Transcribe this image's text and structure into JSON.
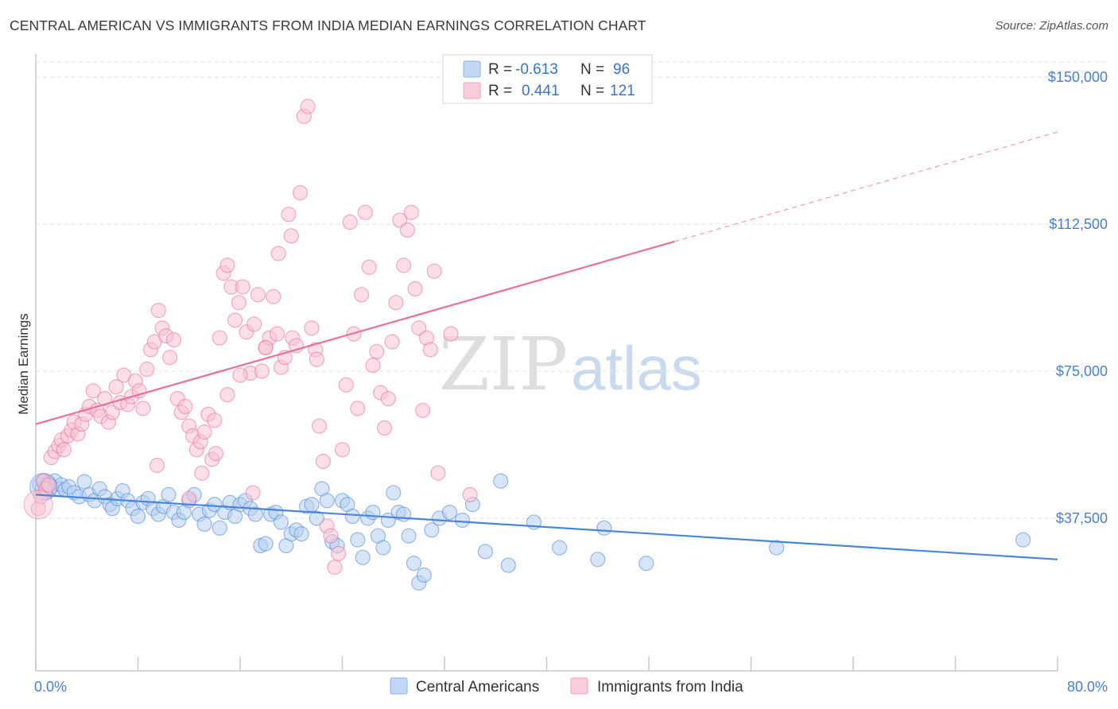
{
  "title": "CENTRAL AMERICAN VS IMMIGRANTS FROM INDIA MEDIAN EARNINGS CORRELATION CHART",
  "source": "Source: ZipAtlas.com",
  "watermark": {
    "zip": "ZIP",
    "atlas": "atlas"
  },
  "legend": {
    "r_label": "R =",
    "n_label": "N =",
    "entries": [
      {
        "r": "-0.613",
        "n": "96",
        "color": "#8db3e8",
        "fill": "#c2d7f3"
      },
      {
        "r": "0.441",
        "n": "121",
        "color": "#f0a4be",
        "fill": "#f9ccda"
      }
    ]
  },
  "chart_data": {
    "type": "scatter",
    "ylabel": "Median Earnings",
    "xlim": [
      0,
      80
    ],
    "ylim": [
      0,
      150000
    ],
    "x_tick_labels": [
      "0.0%",
      "80.0%"
    ],
    "y_ticks": [
      {
        "value": 37500,
        "label": "$37,500"
      },
      {
        "value": 75000,
        "label": "$75,000"
      },
      {
        "value": 112500,
        "label": "$112,500"
      },
      {
        "value": 150000,
        "label": "$150,000"
      }
    ],
    "grid": true,
    "legend_position": "top-center",
    "series": [
      {
        "name": "Central Americans",
        "color": "#4a86d8",
        "fill": "#b7cff1",
        "trend": {
          "x0": 0,
          "y0": 43500,
          "x1": 80,
          "y1": 27000
        },
        "points": [
          [
            0.3,
            46000
          ],
          [
            0.5,
            45000
          ],
          [
            0.6,
            47000
          ],
          [
            0.8,
            44000
          ],
          [
            1.0,
            46500
          ],
          [
            1.2,
            45500
          ],
          [
            1.5,
            47000
          ],
          [
            1.8,
            45000
          ],
          [
            2.0,
            46000
          ],
          [
            2.3,
            44800
          ],
          [
            2.6,
            45500
          ],
          [
            3.0,
            44000
          ],
          [
            3.4,
            43000
          ],
          [
            3.8,
            46800
          ],
          [
            4.2,
            43500
          ],
          [
            4.6,
            42000
          ],
          [
            5.0,
            45000
          ],
          [
            5.4,
            43000
          ],
          [
            5.8,
            41000
          ],
          [
            6.0,
            40000
          ],
          [
            6.4,
            42500
          ],
          [
            6.8,
            44500
          ],
          [
            7.2,
            42000
          ],
          [
            7.6,
            40000
          ],
          [
            8.0,
            38000
          ],
          [
            8.4,
            41500
          ],
          [
            8.8,
            42500
          ],
          [
            9.2,
            40000
          ],
          [
            9.6,
            38500
          ],
          [
            10.0,
            40500
          ],
          [
            10.4,
            43500
          ],
          [
            10.8,
            39000
          ],
          [
            11.2,
            37000
          ],
          [
            11.6,
            39000
          ],
          [
            12.0,
            42000
          ],
          [
            12.4,
            43500
          ],
          [
            12.8,
            38500
          ],
          [
            13.2,
            36000
          ],
          [
            13.6,
            39500
          ],
          [
            14.0,
            41000
          ],
          [
            14.4,
            35000
          ],
          [
            14.8,
            39000
          ],
          [
            15.2,
            41500
          ],
          [
            15.6,
            38000
          ],
          [
            16.0,
            41000
          ],
          [
            16.4,
            42000
          ],
          [
            16.8,
            40000
          ],
          [
            17.2,
            38500
          ],
          [
            17.6,
            30500
          ],
          [
            18.0,
            31000
          ],
          [
            18.4,
            38500
          ],
          [
            18.8,
            39000
          ],
          [
            19.2,
            36500
          ],
          [
            19.6,
            30500
          ],
          [
            20.0,
            33500
          ],
          [
            20.4,
            34500
          ],
          [
            20.8,
            33500
          ],
          [
            21.2,
            40500
          ],
          [
            21.6,
            41000
          ],
          [
            22.0,
            37500
          ],
          [
            22.4,
            45000
          ],
          [
            22.8,
            42000
          ],
          [
            23.2,
            31500
          ],
          [
            23.6,
            30500
          ],
          [
            24.0,
            42000
          ],
          [
            24.4,
            41000
          ],
          [
            24.8,
            38000
          ],
          [
            25.2,
            32000
          ],
          [
            25.6,
            27500
          ],
          [
            26.0,
            37500
          ],
          [
            26.4,
            39000
          ],
          [
            26.8,
            33000
          ],
          [
            27.2,
            30000
          ],
          [
            27.6,
            37000
          ],
          [
            28.0,
            44000
          ],
          [
            28.4,
            39000
          ],
          [
            28.8,
            38500
          ],
          [
            29.2,
            33000
          ],
          [
            29.6,
            26000
          ],
          [
            30.0,
            21000
          ],
          [
            30.4,
            23000
          ],
          [
            31.0,
            34500
          ],
          [
            31.6,
            37500
          ],
          [
            32.4,
            39000
          ],
          [
            33.4,
            37000
          ],
          [
            34.2,
            41000
          ],
          [
            35.2,
            29000
          ],
          [
            36.4,
            47000
          ],
          [
            37.0,
            25500
          ],
          [
            39.0,
            36500
          ],
          [
            41.0,
            30000
          ],
          [
            44.5,
            35000
          ],
          [
            44.0,
            27000
          ],
          [
            47.8,
            26000
          ],
          [
            58.0,
            30000
          ],
          [
            77.3,
            32000
          ]
        ]
      },
      {
        "name": "Immigrants from India",
        "color": "#e8709a",
        "fill": "#f7c3d4",
        "trend": {
          "x0": 0,
          "y0": 61500,
          "x1": 80,
          "y1": 136000,
          "solid_until": 50
        },
        "points": [
          [
            0.2,
            40000
          ],
          [
            0.4,
            43000
          ],
          [
            0.6,
            47000
          ],
          [
            0.8,
            45000
          ],
          [
            1.0,
            46000
          ],
          [
            1.2,
            53000
          ],
          [
            1.5,
            54500
          ],
          [
            1.8,
            56000
          ],
          [
            2.0,
            57500
          ],
          [
            2.2,
            55000
          ],
          [
            2.5,
            58500
          ],
          [
            2.8,
            60000
          ],
          [
            3.0,
            62000
          ],
          [
            3.3,
            59000
          ],
          [
            3.6,
            61500
          ],
          [
            3.9,
            64000
          ],
          [
            4.2,
            66000
          ],
          [
            4.5,
            70000
          ],
          [
            4.8,
            65000
          ],
          [
            5.1,
            63500
          ],
          [
            5.4,
            68000
          ],
          [
            5.7,
            62000
          ],
          [
            6.0,
            64500
          ],
          [
            6.3,
            71000
          ],
          [
            6.6,
            67000
          ],
          [
            6.9,
            74000
          ],
          [
            7.2,
            66500
          ],
          [
            7.5,
            68500
          ],
          [
            7.8,
            72500
          ],
          [
            8.1,
            70000
          ],
          [
            8.4,
            65500
          ],
          [
            8.7,
            75500
          ],
          [
            9.0,
            80500
          ],
          [
            9.3,
            82500
          ],
          [
            9.6,
            90500
          ],
          [
            9.9,
            86000
          ],
          [
            10.2,
            84000
          ],
          [
            10.5,
            78500
          ],
          [
            10.8,
            83000
          ],
          [
            11.1,
            68000
          ],
          [
            11.4,
            64500
          ],
          [
            11.7,
            66000
          ],
          [
            12.0,
            61000
          ],
          [
            12.3,
            58500
          ],
          [
            12.6,
            55000
          ],
          [
            12.9,
            57000
          ],
          [
            13.2,
            59500
          ],
          [
            13.5,
            64000
          ],
          [
            13.8,
            52500
          ],
          [
            14.1,
            54000
          ],
          [
            14.4,
            83500
          ],
          [
            14.7,
            100000
          ],
          [
            15.0,
            102000
          ],
          [
            15.3,
            96500
          ],
          [
            15.6,
            88000
          ],
          [
            15.9,
            92500
          ],
          [
            16.2,
            96500
          ],
          [
            16.5,
            85000
          ],
          [
            16.8,
            74500
          ],
          [
            17.1,
            87000
          ],
          [
            17.4,
            94500
          ],
          [
            17.7,
            75000
          ],
          [
            18.0,
            81000
          ],
          [
            18.3,
            83500
          ],
          [
            18.6,
            94000
          ],
          [
            18.9,
            84500
          ],
          [
            19.2,
            76000
          ],
          [
            19.5,
            78500
          ],
          [
            19.8,
            115000
          ],
          [
            20.1,
            83500
          ],
          [
            20.4,
            81500
          ],
          [
            20.7,
            120500
          ],
          [
            21.0,
            140000
          ],
          [
            21.3,
            142500
          ],
          [
            21.6,
            86000
          ],
          [
            21.9,
            80500
          ],
          [
            22.2,
            61000
          ],
          [
            22.5,
            52000
          ],
          [
            22.8,
            35500
          ],
          [
            23.1,
            33000
          ],
          [
            23.4,
            25000
          ],
          [
            23.7,
            28500
          ],
          [
            24.0,
            55000
          ],
          [
            24.3,
            71500
          ],
          [
            24.6,
            113000
          ],
          [
            24.9,
            84500
          ],
          [
            25.2,
            65500
          ],
          [
            25.5,
            94500
          ],
          [
            25.8,
            115500
          ],
          [
            26.1,
            101500
          ],
          [
            26.4,
            76500
          ],
          [
            26.7,
            80000
          ],
          [
            27.0,
            69500
          ],
          [
            27.3,
            60500
          ],
          [
            27.6,
            68000
          ],
          [
            27.9,
            82500
          ],
          [
            28.2,
            92500
          ],
          [
            28.5,
            113500
          ],
          [
            28.8,
            102000
          ],
          [
            29.1,
            111000
          ],
          [
            29.4,
            115500
          ],
          [
            29.7,
            96000
          ],
          [
            30.0,
            86000
          ],
          [
            30.3,
            65000
          ],
          [
            30.6,
            83500
          ],
          [
            30.9,
            80500
          ],
          [
            31.2,
            100500
          ],
          [
            31.5,
            49000
          ],
          [
            32.5,
            84500
          ],
          [
            34.0,
            43500
          ],
          [
            9.5,
            51000
          ],
          [
            13.0,
            49000
          ],
          [
            17.0,
            44000
          ],
          [
            12.0,
            42500
          ],
          [
            20.0,
            109500
          ],
          [
            19.0,
            105000
          ],
          [
            18.0,
            81000
          ],
          [
            16.0,
            74000
          ],
          [
            15.0,
            69000
          ],
          [
            14.0,
            62500
          ],
          [
            22.0,
            78000
          ]
        ]
      }
    ]
  },
  "bottom_legend": [
    "Central Americans",
    "Immigrants from India"
  ]
}
